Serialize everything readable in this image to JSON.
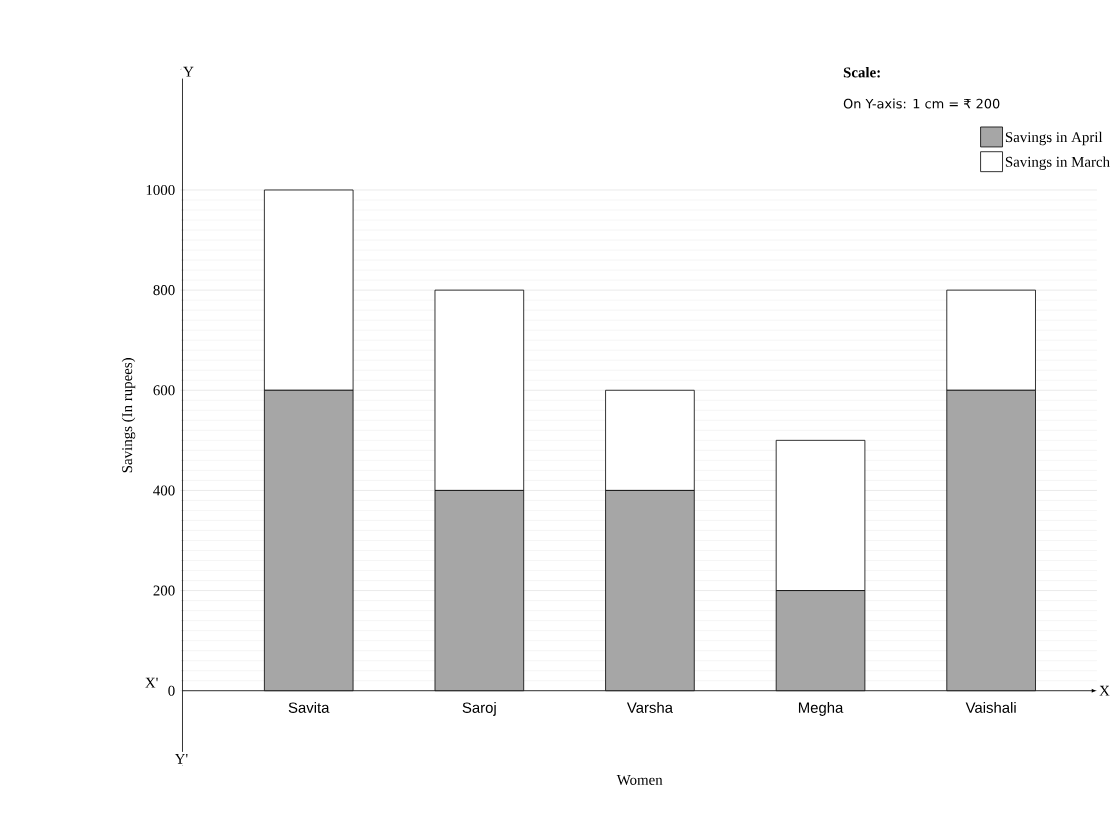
{
  "chart_data": {
    "type": "bar",
    "stacked": true,
    "xlabel": "Women",
    "ylabel": "Savings (In rupees)",
    "categories": [
      "Savita",
      "Saroj",
      "Varsha",
      "Megha",
      "Vaishali"
    ],
    "series": [
      {
        "name": "Savings in April",
        "color": "#a6a6a6",
        "values": [
          600,
          400,
          400,
          200,
          600
        ]
      },
      {
        "name": "Savings in March",
        "color": "#ffffff",
        "values": [
          400,
          400,
          200,
          300,
          200
        ]
      }
    ],
    "ylim": [
      -150,
      1250
    ],
    "yticks": [
      0,
      200,
      400,
      600,
      800,
      1000
    ],
    "grid": "y",
    "legend": "top right",
    "annotations": [
      "Scale:",
      "On Y-axis: 1 cm = ₹ 200",
      "X'",
      "X",
      "Y",
      "Y'"
    ]
  }
}
